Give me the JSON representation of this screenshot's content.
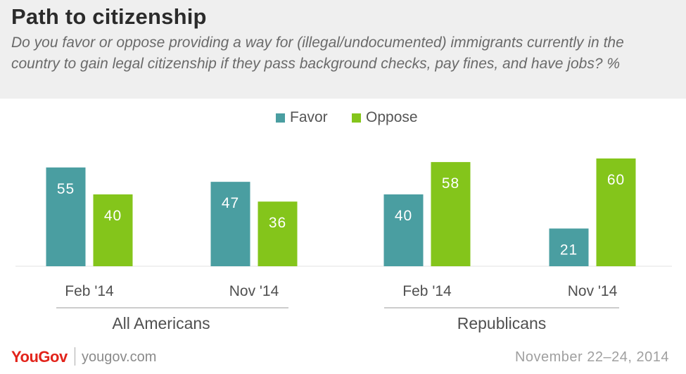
{
  "header": {
    "title": "Path to citizenship",
    "subtitle": "Do you favor or oppose providing a way for (illegal/undocumented) immigrants currently in the country to gain legal citizenship if they pass background checks, pay fines, and have jobs? %"
  },
  "legend": [
    {
      "label": "Favor",
      "color": "#4a9ea1"
    },
    {
      "label": "Oppose",
      "color": "#84c51b"
    }
  ],
  "chart_data": {
    "type": "bar",
    "title": "Path to citizenship",
    "groups": [
      {
        "name": "All Americans",
        "categories": [
          "Feb '14",
          "Nov '14"
        ]
      },
      {
        "name": "Republicans",
        "categories": [
          "Feb '14",
          "Nov '14"
        ]
      }
    ],
    "categories": [
      "Feb '14",
      "Nov '14",
      "Feb '14",
      "Nov '14"
    ],
    "series": [
      {
        "name": "Favor",
        "color": "#4a9ea1",
        "values": [
          55,
          47,
          40,
          21
        ]
      },
      {
        "name": "Oppose",
        "color": "#84c51b",
        "values": [
          40,
          36,
          58,
          60
        ]
      }
    ],
    "ylim": [
      0,
      60
    ],
    "grid": false,
    "legend_position": "top-center"
  },
  "footer": {
    "logo": "YouGov",
    "url": "yougov.com",
    "date": "November 22–24, 2014"
  }
}
